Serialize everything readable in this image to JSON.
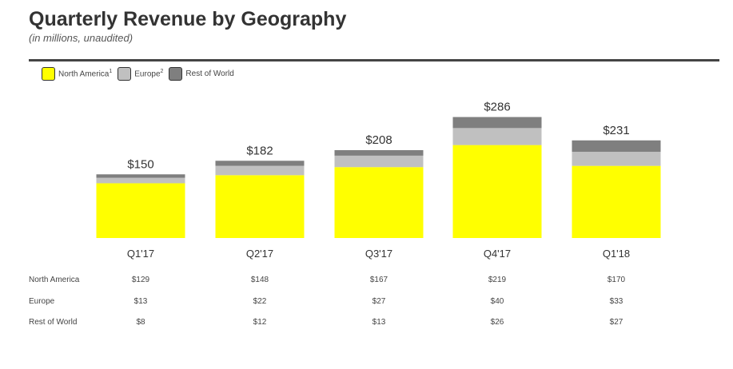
{
  "header": {
    "title": "Quarterly Revenue by Geography",
    "subtitle": "(in millions, unaudited)"
  },
  "legend": [
    {
      "label": "North America",
      "sup": "1",
      "color": "#ffff00"
    },
    {
      "label": "Europe",
      "sup": "2",
      "color": "#c0c0c0"
    },
    {
      "label": "Rest of World",
      "sup": "",
      "color": "#7f7f7f"
    }
  ],
  "chart_data": {
    "type": "bar",
    "stacked": true,
    "categories": [
      "Q1'17",
      "Q2'17",
      "Q3'17",
      "Q4'17",
      "Q1'18"
    ],
    "series": [
      {
        "name": "North America",
        "values": [
          129,
          148,
          167,
          219,
          170
        ],
        "color": "#ffff00"
      },
      {
        "name": "Europe",
        "values": [
          13,
          22,
          27,
          40,
          33
        ],
        "color": "#c0c0c0"
      },
      {
        "name": "Rest of World",
        "values": [
          8,
          12,
          13,
          26,
          27
        ],
        "color": "#7f7f7f"
      }
    ],
    "totals": [
      150,
      182,
      208,
      286,
      231
    ],
    "total_labels": [
      "$150",
      "$182",
      "$208",
      "$286",
      "$231"
    ],
    "title": "Quarterly Revenue by Geography",
    "legend_position": "top-left",
    "grid": false
  },
  "table": {
    "rows": [
      {
        "label": "North America",
        "cells": [
          "$129",
          "$148",
          "$167",
          "$219",
          "$170"
        ]
      },
      {
        "label": "Europe",
        "cells": [
          "$13",
          "$22",
          "$27",
          "$40",
          "$33"
        ]
      },
      {
        "label": "Rest of World",
        "cells": [
          "$8",
          "$12",
          "$13",
          "$26",
          "$27"
        ]
      }
    ]
  }
}
